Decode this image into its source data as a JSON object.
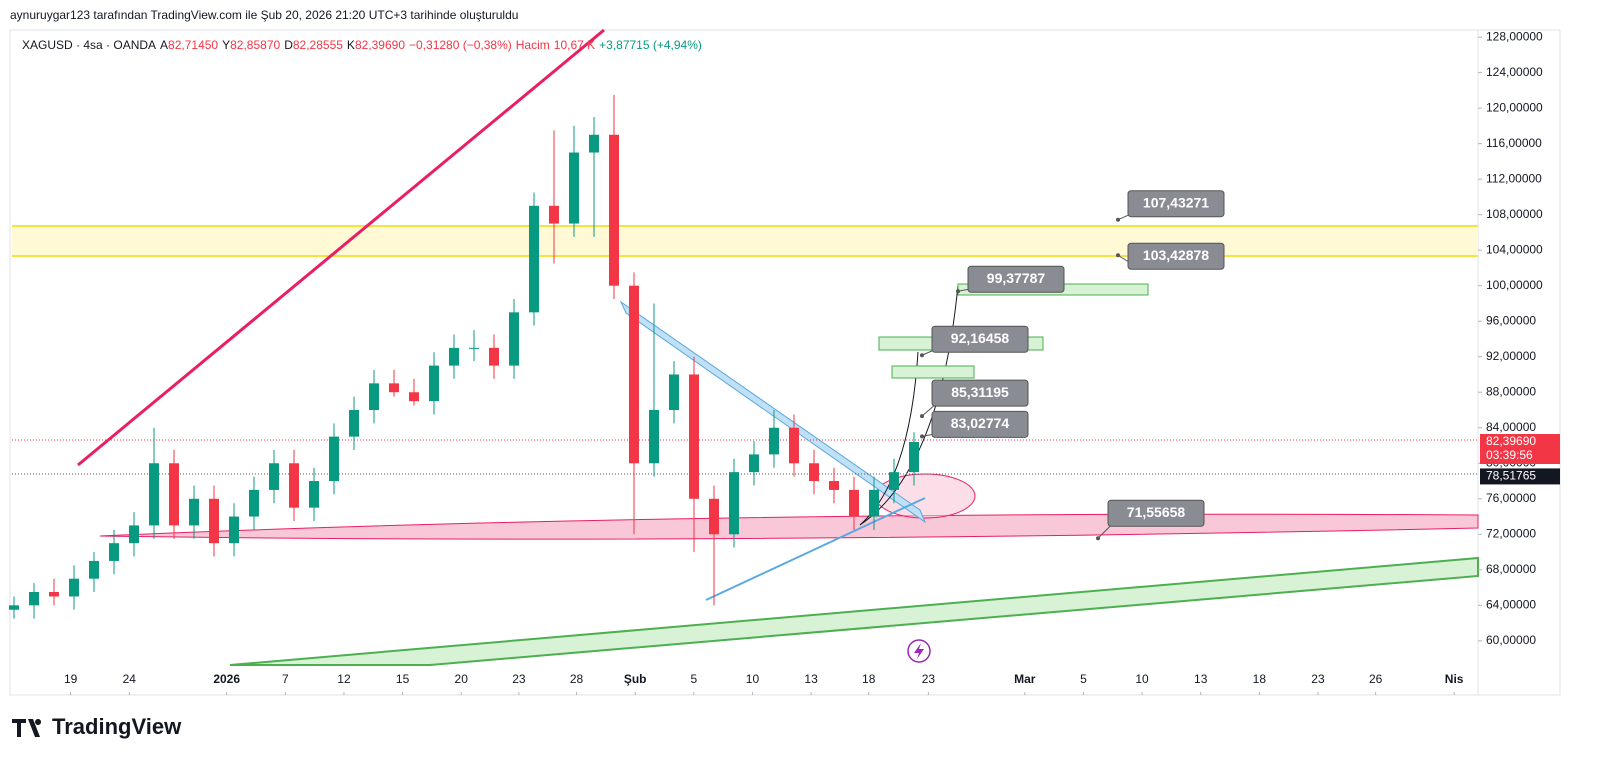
{
  "header": {
    "credit": "aynuruygar123 tarafından TradingView.com ile Şub 20, 2026 21:20 UTC+3 tarihinde oluşturuldu",
    "logo": "TradingView"
  },
  "legend": {
    "symbol": "XAGUSD · 4sa · OANDA",
    "fields": [
      {
        "label": "A",
        "value": "82,71450"
      },
      {
        "label": "Y",
        "value": "82,85870"
      },
      {
        "label": "D",
        "value": "82,28555"
      },
      {
        "label": "K",
        "value": "82,39690"
      }
    ],
    "change": "−0,31280 (−0,38%)",
    "volume_label": "Hacim",
    "volume": "10,67 K",
    "volume_change": "+3,87715 (+4,94%)"
  },
  "chart_data": {
    "type": "candlestick",
    "up_color": "#089981",
    "down_color": "#f23645",
    "open": [
      63.5,
      64,
      65.5,
      65,
      67,
      69,
      71,
      73,
      80,
      73,
      76,
      71,
      74,
      77,
      80,
      75,
      78,
      83,
      86,
      89,
      88,
      87,
      91,
      93,
      93,
      91,
      97,
      109,
      107,
      115,
      117,
      100,
      80,
      86,
      90,
      76,
      72,
      79,
      81,
      84,
      80,
      78,
      77,
      74,
      77,
      79
    ],
    "high": [
      65,
      66.5,
      67,
      68.5,
      70,
      72.5,
      74.5,
      84,
      81.5,
      77.5,
      77.5,
      75.5,
      78.5,
      81.5,
      81.5,
      79.5,
      84.5,
      87.5,
      90.5,
      90.5,
      89.5,
      92.5,
      94.5,
      95,
      94.5,
      98.5,
      110.5,
      117.5,
      118,
      119,
      121.5,
      101.5,
      98,
      91.5,
      92,
      77.5,
      80.5,
      82.5,
      86,
      85.5,
      81.5,
      79.5,
      78.5,
      78.5,
      80.5,
      83.5
    ],
    "low": [
      62.5,
      62.5,
      64,
      63.5,
      65.5,
      67.5,
      69.5,
      71.5,
      71.5,
      71.5,
      69.5,
      69.5,
      72.5,
      75.5,
      73.5,
      73.5,
      76.5,
      81.5,
      84.5,
      87.5,
      86.5,
      85.5,
      89.5,
      91.5,
      89.5,
      89.5,
      95.5,
      102.5,
      105.5,
      105.5,
      98.5,
      72,
      78.5,
      84.5,
      70,
      64,
      70.5,
      77.5,
      79.5,
      78.5,
      76.5,
      75.5,
      72.5,
      72.5,
      75.5,
      77.5
    ],
    "close": [
      64,
      65.5,
      65,
      67,
      69,
      71,
      73,
      80,
      73,
      76,
      71,
      74,
      77,
      80,
      75,
      78,
      83,
      86,
      89,
      88,
      87,
      91,
      93,
      93,
      91,
      97,
      109,
      107,
      115,
      117,
      100,
      80,
      86,
      90,
      76,
      72,
      79,
      81,
      84,
      80,
      78,
      77,
      74,
      77,
      79,
      82.4
    ],
    "xlim": [
      -0.7,
      73.05
    ],
    "xticks": [
      {
        "value": 2.25,
        "label": "19"
      },
      {
        "value": 5.2,
        "label": "24"
      },
      {
        "value": 10.1,
        "label": "2026"
      },
      {
        "value": 13.05,
        "label": "7"
      },
      {
        "value": 16,
        "label": "12"
      },
      {
        "value": 18.95,
        "label": "15"
      },
      {
        "value": 21.9,
        "label": "20"
      },
      {
        "value": 24.8,
        "label": "23"
      },
      {
        "value": 27.7,
        "label": "28"
      },
      {
        "value": 30.65,
        "label": "Şub"
      },
      {
        "value": 33.6,
        "label": "5"
      },
      {
        "value": 36.55,
        "label": "10"
      },
      {
        "value": 39.5,
        "label": "13"
      },
      {
        "value": 42.4,
        "label": "18"
      },
      {
        "value": 45.4,
        "label": "23"
      },
      {
        "value": 50.25,
        "label": "Mar"
      },
      {
        "value": 53.2,
        "label": "5"
      },
      {
        "value": 56.15,
        "label": "10"
      },
      {
        "value": 59.1,
        "label": "13"
      },
      {
        "value": 62.05,
        "label": "18"
      },
      {
        "value": 65,
        "label": "23"
      },
      {
        "value": 67.9,
        "label": "26"
      },
      {
        "value": 71.85,
        "label": "Nis"
      }
    ],
    "ylim": [
      53.9,
      128.8
    ],
    "yticks": [
      {
        "value": 60,
        "label": "60,00000"
      },
      {
        "value": 64,
        "label": "64,00000"
      },
      {
        "value": 68,
        "label": "68,00000"
      },
      {
        "value": 72,
        "label": "72,00000"
      },
      {
        "value": 76,
        "label": "76,00000"
      },
      {
        "value": 80,
        "label": "80,00000"
      },
      {
        "value": 84,
        "label": "84,00000"
      },
      {
        "value": 88,
        "label": "88,00000"
      },
      {
        "value": 92,
        "label": "92,00000"
      },
      {
        "value": 96,
        "label": "96,00000"
      },
      {
        "value": 100,
        "label": "100,00000"
      },
      {
        "value": 104,
        "label": "104,00000"
      },
      {
        "value": 108,
        "label": "108,00000"
      },
      {
        "value": 112,
        "label": "112,00000"
      },
      {
        "value": 116,
        "label": "116,00000"
      },
      {
        "value": 120,
        "label": "120,00000"
      },
      {
        "value": 124,
        "label": "124,00000"
      },
      {
        "value": 128,
        "label": "128,00000"
      }
    ],
    "price_labels": [
      {
        "value": 82.3969,
        "label": "82,39690",
        "color": "#f23645"
      },
      {
        "value": 78.51765,
        "label": "78,51765",
        "color": "#131722"
      }
    ],
    "countdown": "03:39:56",
    "annotations": [
      {
        "value": 107.43271,
        "label": "107,43271"
      },
      {
        "value": 103.42878,
        "label": "103,42878"
      },
      {
        "value": 99.37787,
        "label": "99,37787"
      },
      {
        "value": 92.16458,
        "label": "92,16458"
      },
      {
        "value": 85.31195,
        "label": "85,31195"
      },
      {
        "value": 83.02774,
        "label": "83,02774"
      },
      {
        "value": 71.55658,
        "label": "71,55658"
      }
    ]
  }
}
